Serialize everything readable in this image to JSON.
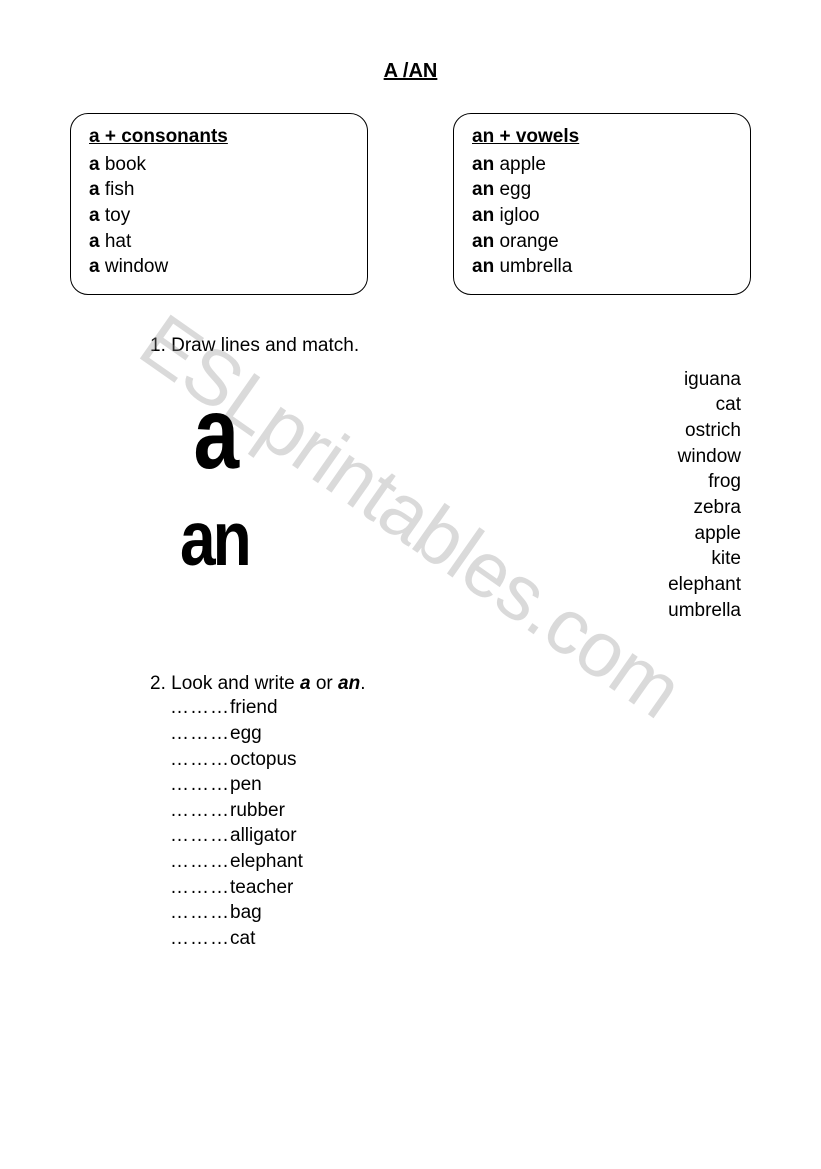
{
  "title": "A /AN",
  "watermark": "ESLprintables.com",
  "boxes": {
    "left": {
      "heading": "a + consonants",
      "article": "a",
      "examples": [
        "book",
        "fish",
        "toy",
        "hat",
        "window"
      ]
    },
    "right": {
      "heading": "an + vowels",
      "article": "an",
      "examples": [
        "apple",
        "egg",
        "igloo",
        "orange",
        "umbrella"
      ]
    }
  },
  "exercise1": {
    "instruction": "1. Draw lines and match.",
    "left_articles": {
      "a": "a",
      "an": "an"
    },
    "words": [
      "iguana",
      "cat",
      "ostrich",
      "window",
      "frog",
      "zebra",
      "apple",
      "kite",
      "elephant",
      "umbrella"
    ]
  },
  "exercise2": {
    "instruction_pre": "2. Look and write ",
    "a_word": "a",
    "mid": " or ",
    "an_word": "an",
    "post": ".",
    "dots": "………",
    "words": [
      "friend",
      "egg",
      "octopus",
      "pen",
      "rubber",
      "alligator",
      "elephant",
      "teacher",
      "bag",
      "cat"
    ]
  },
  "colors": {
    "text": "#000000",
    "background": "#ffffff",
    "watermark": "rgba(140,140,140,0.32)"
  }
}
